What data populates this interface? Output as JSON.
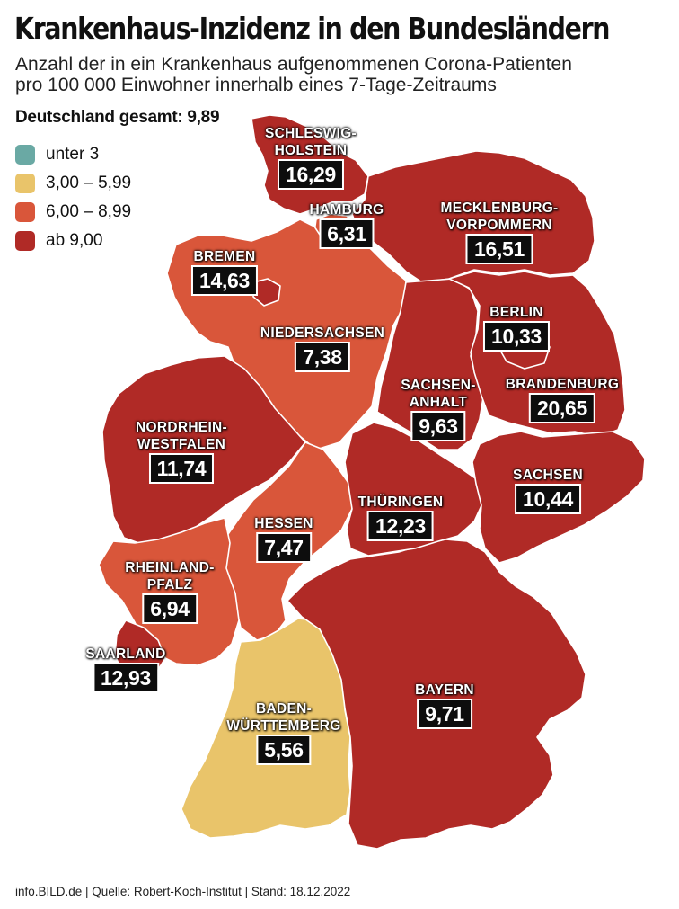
{
  "header": {
    "title": "Krankenhaus-Inzidenz in den Bundesländern",
    "subtitle_line1": "Anzahl der in ein Krankenhaus aufgenommenen Corona-Patienten",
    "subtitle_line2": "pro 100 000 Einwohner innerhalb eines 7-Tage-Zeitraums",
    "total": "Deutschland gesamt: 9,89"
  },
  "legend": [
    {
      "label": "unter 3",
      "color": "#6aa9a4"
    },
    {
      "label": "3,00 – 5,99",
      "color": "#e9c46a"
    },
    {
      "label": "6,00 – 8,99",
      "color": "#d9563a"
    },
    {
      "label": "ab 9,00",
      "color": "#b02a26"
    }
  ],
  "states": [
    {
      "id": "sh",
      "name_lines": [
        "SCHLESWIG-",
        "HOLSTEIN"
      ],
      "value": "16,29",
      "class": "ab 9,00"
    },
    {
      "id": "hh",
      "name_lines": [
        "HAMBURG"
      ],
      "value": "6,31",
      "class": "6,00 – 8,99"
    },
    {
      "id": "mv",
      "name_lines": [
        "MECKLENBURG-",
        "VORPOMMERN"
      ],
      "value": "16,51",
      "class": "ab 9,00"
    },
    {
      "id": "hb",
      "name_lines": [
        "BREMEN"
      ],
      "value": "14,63",
      "class": "ab 9,00"
    },
    {
      "id": "ni",
      "name_lines": [
        "NIEDERSACHSEN"
      ],
      "value": "7,38",
      "class": "6,00 – 8,99"
    },
    {
      "id": "be",
      "name_lines": [
        "BERLIN"
      ],
      "value": "10,33",
      "class": "ab 9,00"
    },
    {
      "id": "bb",
      "name_lines": [
        "BRANDENBURG"
      ],
      "value": "20,65",
      "class": "ab 9,00"
    },
    {
      "id": "st",
      "name_lines": [
        "SACHSEN-",
        "ANHALT"
      ],
      "value": "9,63",
      "class": "ab 9,00"
    },
    {
      "id": "nw",
      "name_lines": [
        "NORDRHEIN-",
        "WESTFALEN"
      ],
      "value": "11,74",
      "class": "ab 9,00"
    },
    {
      "id": "sn",
      "name_lines": [
        "SACHSEN"
      ],
      "value": "10,44",
      "class": "ab 9,00"
    },
    {
      "id": "he",
      "name_lines": [
        "HESSEN"
      ],
      "value": "7,47",
      "class": "6,00 – 8,99"
    },
    {
      "id": "th",
      "name_lines": [
        "THÜRINGEN"
      ],
      "value": "12,23",
      "class": "ab 9,00"
    },
    {
      "id": "rp",
      "name_lines": [
        "RHEINLAND-",
        "PFALZ"
      ],
      "value": "6,94",
      "class": "6,00 – 8,99"
    },
    {
      "id": "sl",
      "name_lines": [
        "SAARLAND"
      ],
      "value": "12,93",
      "class": "ab 9,00"
    },
    {
      "id": "by",
      "name_lines": [
        "BAYERN"
      ],
      "value": "9,71",
      "class": "ab 9,00"
    },
    {
      "id": "bw",
      "name_lines": [
        "BADEN-",
        "WÜRTTEMBERG"
      ],
      "value": "5,56",
      "class": "3,00 – 5,99"
    }
  ],
  "footer": {
    "source": "info.BILD.de | Quelle: Robert-Koch-Institut | Stand: 18.12.2022"
  }
}
